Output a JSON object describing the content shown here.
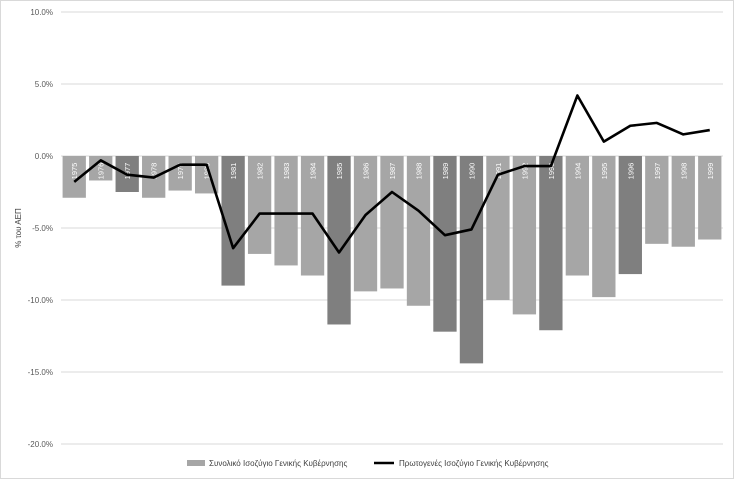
{
  "chart_data": {
    "type": "bar",
    "ylabel": "% του ΑΕΠ",
    "ylim": [
      -20,
      10
    ],
    "ytick_values": [
      10,
      5,
      0,
      -5,
      -10,
      -15,
      -20
    ],
    "ytick_labels": [
      "10.0%",
      "5.0%",
      "0.0%",
      "-5.0%",
      "-10.0%",
      "-15.0%",
      "-20.0%"
    ],
    "grid": true,
    "legend_position": "bottom",
    "categories": [
      "1975",
      "1976",
      "1977",
      "1978",
      "1979",
      "1980",
      "1981",
      "1982",
      "1983",
      "1984",
      "1985",
      "1986",
      "1987",
      "1988",
      "1989",
      "1990",
      "1991",
      "1992",
      "1993",
      "1994",
      "1995",
      "1996",
      "1997",
      "1998",
      "1999"
    ],
    "series": [
      {
        "name": "Συνολικό Ισοζύγιο Γενικής Κυβέρνησης",
        "kind": "bar",
        "color": "#a6a6a6",
        "highlight_color": "#7f7f7f",
        "highlight_categories": [
          "1977",
          "1981",
          "1985",
          "1989",
          "1990",
          "1993",
          "1996"
        ],
        "values": [
          -2.9,
          -1.7,
          -2.5,
          -2.9,
          -2.4,
          -2.6,
          -9.0,
          -6.8,
          -7.6,
          -8.3,
          -11.7,
          -9.4,
          -9.2,
          -10.4,
          -12.2,
          -14.4,
          -10.0,
          -11.0,
          -12.1,
          -8.3,
          -9.8,
          -8.2,
          -6.1,
          -6.3,
          -5.8
        ]
      },
      {
        "name": "Πρωτογενές Ισοζύγιο Γενικής Κυβέρνησης",
        "kind": "line",
        "color": "#000000",
        "values": [
          -1.8,
          -0.3,
          -1.3,
          -1.5,
          -0.6,
          -0.6,
          -6.4,
          -4.0,
          -4.0,
          -4.0,
          -6.7,
          -4.1,
          -2.5,
          -3.8,
          -5.5,
          -5.1,
          -1.3,
          -0.7,
          -0.7,
          4.2,
          1.0,
          2.1,
          2.3,
          1.5,
          1.8
        ]
      }
    ]
  }
}
